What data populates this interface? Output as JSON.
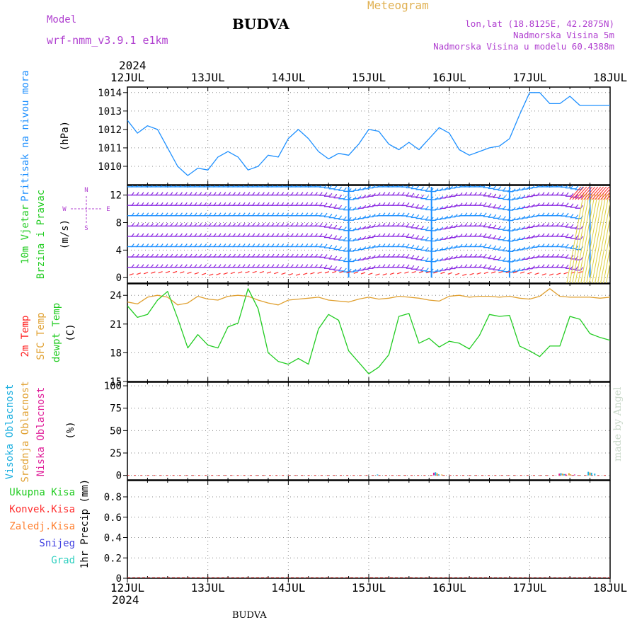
{
  "header": {
    "model_label": "Model",
    "model_name": "wrf-nmm_v3.9.1 e1km",
    "site": "BUDVA",
    "product": "Meteogram",
    "coords": "lon,lat (18.8125E, 42.2875N)",
    "elevation": "Nadmorska Visina 5m",
    "model_elevation": "Nadmorska Visina u modelu 60.4388m",
    "year": "2024"
  },
  "footer": {
    "site": "BUDVA",
    "year": "2024",
    "credit": "made by Angel"
  },
  "colors": {
    "pressure": "#1e90ff",
    "wind_barb": "#8a2be2",
    "wind_barb_alt": "#1e90ff",
    "wind_red": "#ff3030",
    "temp_2m": "#ff2020",
    "temp_sfc": "#e0a030",
    "dewpt": "#22cc22",
    "cloud_high": "#1fb0e0",
    "cloud_mid": "#e0a030",
    "cloud_low": "#e0209a",
    "precip_total": "#22cc22",
    "precip_conv": "#ff3030",
    "precip_frz": "#ff8030",
    "precip_snow": "#4040e0",
    "precip_grad": "#30d0c0",
    "grid": "#888888"
  },
  "chart_data": [
    {
      "type": "line",
      "id": "pressure",
      "ylabel_lines": [
        "Pritisak na nivou mora"
      ],
      "unit": "(hPa)",
      "ylim": [
        1009,
        1014.3
      ],
      "yticks": [
        1010,
        1011,
        1012,
        1013,
        1014
      ],
      "x_days": [
        0,
        0.125,
        0.25,
        0.375,
        0.5,
        0.625,
        0.75,
        0.875,
        1,
        1.125,
        1.25,
        1.375,
        1.5,
        1.625,
        1.75,
        1.875,
        2,
        2.125,
        2.25,
        2.375,
        2.5,
        2.625,
        2.75,
        2.875,
        3,
        3.125,
        3.25,
        3.375,
        3.5,
        3.625,
        3.75,
        3.875,
        4,
        4.125,
        4.25,
        4.375,
        4.5,
        4.625,
        4.75,
        4.875,
        5,
        5.125,
        5.25,
        5.375,
        5.5,
        5.625,
        5.75,
        5.875,
        6
      ],
      "series": [
        {
          "name": "pressure",
          "color": "#1e90ff",
          "values": [
            1012.5,
            1011.8,
            1012.2,
            1012.0,
            1011.0,
            1010.0,
            1009.5,
            1009.9,
            1009.8,
            1010.5,
            1010.8,
            1010.5,
            1009.8,
            1010.0,
            1010.6,
            1010.5,
            1011.5,
            1012.0,
            1011.5,
            1010.8,
            1010.4,
            1010.7,
            1010.6,
            1011.2,
            1012.0,
            1011.9,
            1011.2,
            1010.9,
            1011.3,
            1010.9,
            1011.5,
            1012.1,
            1011.8,
            1010.9,
            1010.6,
            1010.8,
            1011.0,
            1011.1,
            1011.5,
            1012.8,
            1014.0,
            1014.0,
            1013.4,
            1013.4,
            1013.8,
            1013.3,
            1013.3,
            1013.3,
            1013.3
          ]
        }
      ]
    },
    {
      "type": "scatter",
      "id": "wind",
      "ylabel_lines": [
        "10m Vjetar",
        "Brzina i Pravac"
      ],
      "unit": "(m/s)",
      "ylim": [
        -0.8,
        13.4
      ],
      "yticks": [
        0,
        4,
        8,
        12
      ],
      "compass": [
        "N",
        "W",
        "E",
        "S"
      ],
      "barb_levels": [
        1.5,
        3.0,
        4.5,
        6.0,
        7.5,
        9.0,
        10.5,
        12.0,
        13.2
      ],
      "valley_days": [
        2.75,
        3.78,
        4.75,
        5.75
      ]
    },
    {
      "type": "line",
      "id": "temperature",
      "ylabel_lines": [
        "2m Temp",
        "SFC Temp",
        "dewpt Temp"
      ],
      "unit": "(C)",
      "ylim": [
        15,
        25.2
      ],
      "yticks": [
        15,
        18,
        21,
        24
      ],
      "x_days": [
        0,
        0.125,
        0.25,
        0.375,
        0.5,
        0.625,
        0.75,
        0.875,
        1,
        1.125,
        1.25,
        1.375,
        1.5,
        1.625,
        1.75,
        1.875,
        2,
        2.125,
        2.25,
        2.375,
        2.5,
        2.625,
        2.75,
        2.875,
        3,
        3.125,
        3.25,
        3.375,
        3.5,
        3.625,
        3.75,
        3.875,
        4,
        4.125,
        4.25,
        4.375,
        4.5,
        4.625,
        4.75,
        4.875,
        5,
        5.125,
        5.25,
        5.375,
        5.5,
        5.625,
        5.75,
        5.875,
        6
      ],
      "series": [
        {
          "name": "SFC Temp",
          "color": "#e0a030",
          "values": [
            23.3,
            23.1,
            23.8,
            24.0,
            23.8,
            23.0,
            23.2,
            23.9,
            23.6,
            23.5,
            23.9,
            24.0,
            23.9,
            23.5,
            23.2,
            23.0,
            23.5,
            23.6,
            23.7,
            23.8,
            23.5,
            23.4,
            23.3,
            23.6,
            23.8,
            23.6,
            23.7,
            23.9,
            23.8,
            23.7,
            23.5,
            23.4,
            23.9,
            24.0,
            23.8,
            23.9,
            23.9,
            23.8,
            23.9,
            23.7,
            23.6,
            23.9,
            24.7,
            23.9,
            23.8,
            23.8,
            23.8,
            23.7,
            23.8
          ]
        },
        {
          "name": "dewpt Temp",
          "color": "#22cc22",
          "values": [
            22.9,
            21.7,
            22.0,
            23.5,
            24.4,
            21.6,
            18.5,
            19.9,
            18.8,
            18.5,
            20.7,
            21.1,
            24.7,
            22.6,
            18.0,
            17.1,
            16.8,
            17.4,
            16.8,
            20.5,
            22.0,
            21.4,
            18.2,
            17.0,
            15.8,
            16.5,
            17.8,
            21.8,
            22.1,
            19.0,
            19.5,
            18.6,
            19.2,
            19.0,
            18.4,
            19.8,
            22.0,
            21.8,
            21.9,
            18.7,
            18.2,
            17.6,
            18.7,
            18.7,
            21.8,
            21.5,
            20.0,
            19.6,
            19.3
          ]
        }
      ]
    },
    {
      "type": "bar",
      "id": "clouds",
      "ylabel_lines": [
        "Visoka Oblacnost",
        "Srednja Oblacnost",
        "Niska Oblacnost"
      ],
      "unit": "(%)",
      "ylim": [
        -5,
        104
      ],
      "yticks": [
        0,
        25,
        50,
        75,
        100
      ],
      "series": [
        {
          "name": "Visoka Oblacnost",
          "color": "#1fb0e0",
          "x_days": [
            3.1,
            3.82,
            3.86,
            5.38,
            5.42,
            5.72,
            5.76,
            5.8
          ],
          "values": [
            1.0,
            3.5,
            1.2,
            2.5,
            1.5,
            4.0,
            3.0,
            2.0
          ]
        },
        {
          "name": "Srednja Oblacnost",
          "color": "#e0a030",
          "x_days": [
            3.84,
            3.9,
            5.4,
            5.48,
            5.5,
            5.74
          ],
          "values": [
            2.5,
            1.0,
            2.0,
            2.5,
            1.2,
            3.2
          ]
        },
        {
          "name": "Niska Oblacnost",
          "color": "#e0209a",
          "x_days": [
            3.8,
            5.36,
            5.44,
            5.55
          ],
          "values": [
            3.0,
            2.0,
            1.5,
            1.0
          ]
        }
      ]
    },
    {
      "type": "bar",
      "id": "precip",
      "ylabel_lines": [
        "Ukupna Kisa",
        "Konvek.Kisa",
        "Zaledj.Kisa",
        "Snijeg",
        "Grad"
      ],
      "unit": "1hr Precip (mm)",
      "ylim": [
        0,
        0.96
      ],
      "yticks": [
        0,
        0.2,
        0.4,
        0.6,
        0.8
      ],
      "series": [
        {
          "name": "Ukupna Kisa",
          "color": "#22cc22",
          "values": [
            0
          ]
        },
        {
          "name": "Konvek.Kisa",
          "color": "#ff3030",
          "values": [
            0
          ]
        },
        {
          "name": "Zaledj.Kisa",
          "color": "#ff8030",
          "values": [
            0
          ]
        },
        {
          "name": "Snijeg",
          "color": "#4040e0",
          "values": [
            0
          ]
        },
        {
          "name": "Grad",
          "color": "#30d0c0",
          "values": [
            0
          ]
        }
      ]
    }
  ],
  "x_axis": {
    "ticks": [
      "12JUL",
      "13JUL",
      "14JUL",
      "15JUL",
      "16JUL",
      "17JUL",
      "18JUL"
    ],
    "range_days": [
      0,
      6
    ]
  }
}
